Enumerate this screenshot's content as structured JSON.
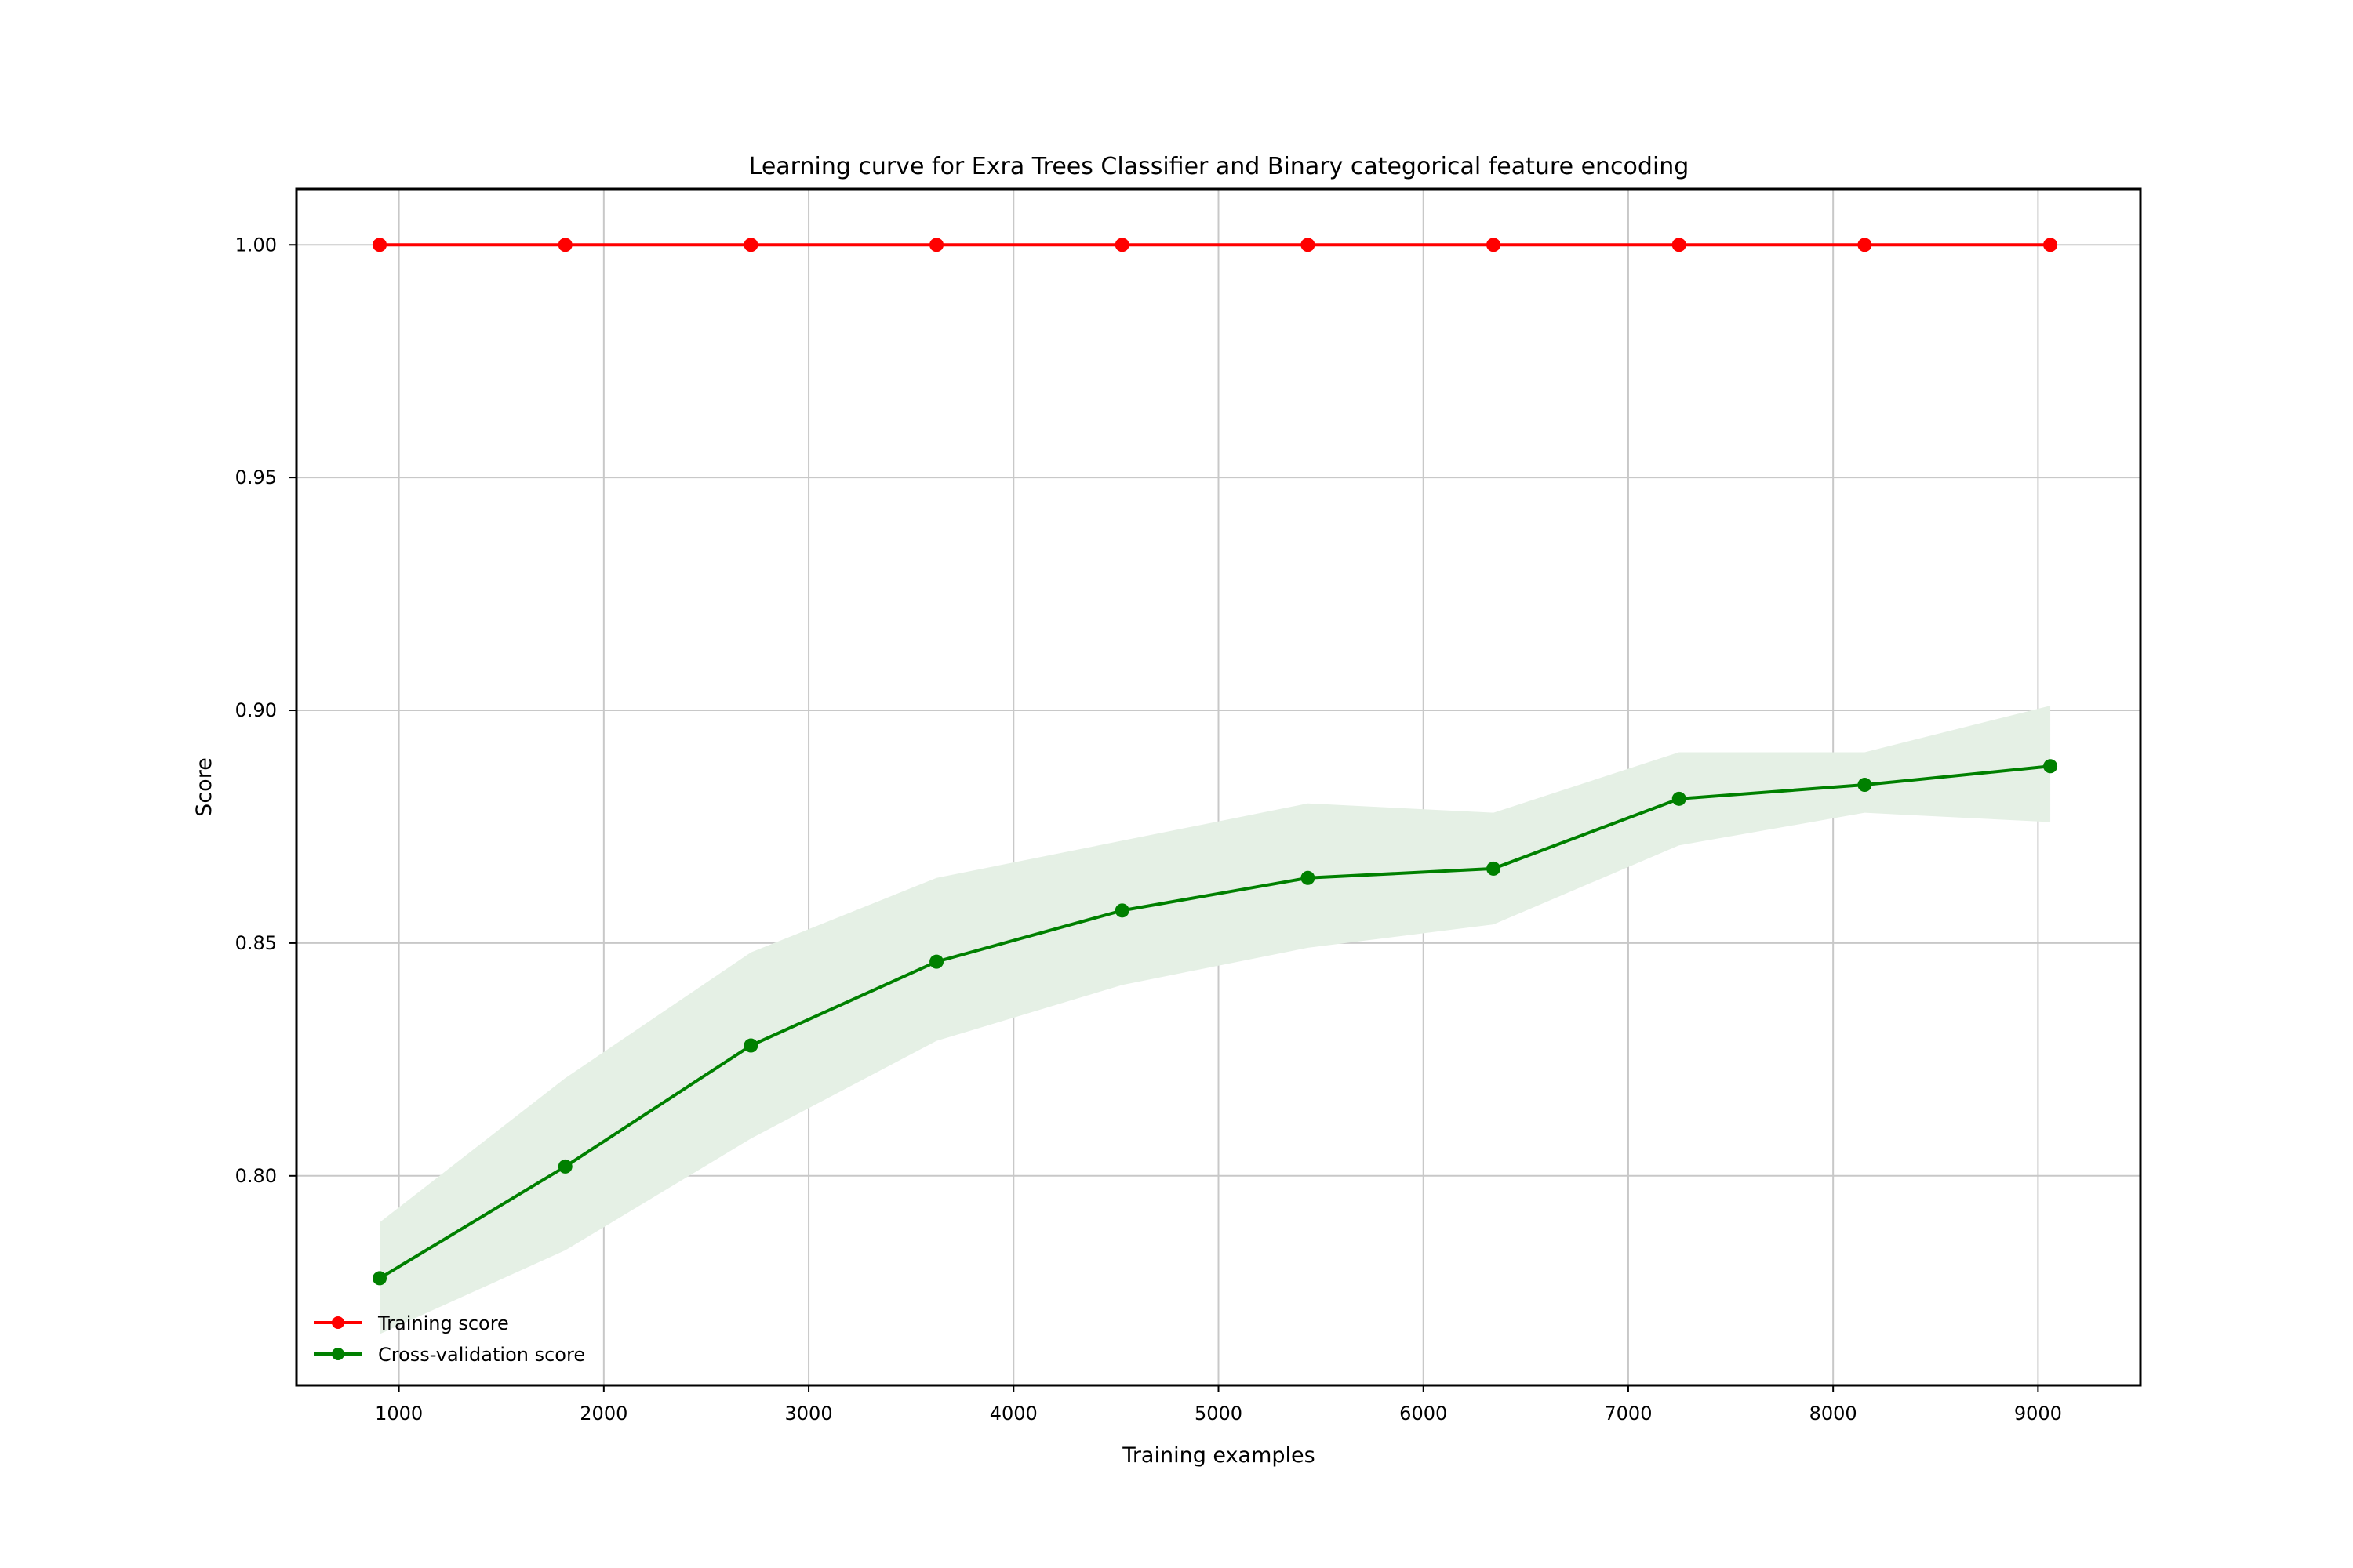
{
  "chart_data": {
    "type": "line",
    "title": "Learning curve for Exra Trees Classifier and Binary categorical feature encoding",
    "xlabel": "Training examples",
    "ylabel": "Score",
    "xlim": [
      500,
      9500
    ],
    "ylim": [
      0.755,
      1.012
    ],
    "xticks": [
      1000,
      2000,
      3000,
      4000,
      5000,
      6000,
      7000,
      8000,
      9000
    ],
    "xtick_labels": [
      "1000",
      "2000",
      "3000",
      "4000",
      "5000",
      "6000",
      "7000",
      "8000",
      "9000"
    ],
    "yticks": [
      0.8,
      0.85,
      0.9,
      0.95,
      1.0
    ],
    "ytick_labels": [
      "0.80",
      "0.85",
      "0.90",
      "0.95",
      "1.00"
    ],
    "grid": true,
    "legend_position": "lower-left",
    "x": [
      906,
      1812,
      2718,
      3624,
      4530,
      5436,
      6342,
      7248,
      8154,
      9060
    ],
    "series": [
      {
        "name": "Training score",
        "color": "#ff0000",
        "values": [
          1.0,
          1.0,
          1.0,
          1.0,
          1.0,
          1.0,
          1.0,
          1.0,
          1.0,
          1.0
        ],
        "band_lower": [
          1.0,
          1.0,
          1.0,
          1.0,
          1.0,
          1.0,
          1.0,
          1.0,
          1.0,
          1.0
        ],
        "band_upper": [
          1.0,
          1.0,
          1.0,
          1.0,
          1.0,
          1.0,
          1.0,
          1.0,
          1.0,
          1.0
        ]
      },
      {
        "name": "Cross-validation score",
        "color": "#008000",
        "band_color": "#e5f0e5",
        "values": [
          0.778,
          0.802,
          0.828,
          0.846,
          0.857,
          0.864,
          0.866,
          0.881,
          0.884,
          0.888
        ],
        "band_lower": [
          0.766,
          0.784,
          0.808,
          0.829,
          0.841,
          0.849,
          0.854,
          0.871,
          0.878,
          0.876
        ],
        "band_upper": [
          0.79,
          0.821,
          0.848,
          0.864,
          0.872,
          0.88,
          0.878,
          0.891,
          0.891,
          0.901
        ]
      }
    ]
  }
}
